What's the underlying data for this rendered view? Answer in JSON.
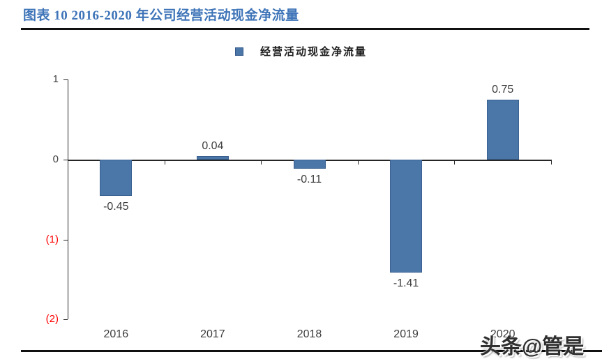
{
  "header": {
    "title": "图表 10 2016-2020 年公司经营活动现金净流量"
  },
  "legend": {
    "label": "经营活动现金净流量",
    "swatch_color": "#4a76a8"
  },
  "footer": {
    "watermark": "头条@管是"
  },
  "chart_data": {
    "type": "bar",
    "title": "图表 10 2016-2020 年公司经营活动现金净流量",
    "categories": [
      "2016",
      "2017",
      "2018",
      "2019",
      "2020"
    ],
    "series": [
      {
        "name": "经营活动现金净流量",
        "values": [
          -0.45,
          0.04,
          -0.11,
          -1.41,
          0.75
        ]
      }
    ],
    "data_labels": [
      "-0.45",
      "0.04",
      "-0.11",
      "-1.41",
      "0.75"
    ],
    "bar_color": "#4a76a8",
    "xlabel": "",
    "ylabel": "",
    "ylim": [
      -2,
      1
    ],
    "y_ticks": [
      {
        "value": 1,
        "label": "1",
        "color": "#404040"
      },
      {
        "value": 0,
        "label": "0",
        "color": "#404040"
      },
      {
        "value": -1,
        "label": "(1)",
        "color": "#ff0000"
      },
      {
        "value": -2,
        "label": "(2)",
        "color": "#ff0000"
      }
    ],
    "grid": false,
    "legend_position": "top"
  }
}
